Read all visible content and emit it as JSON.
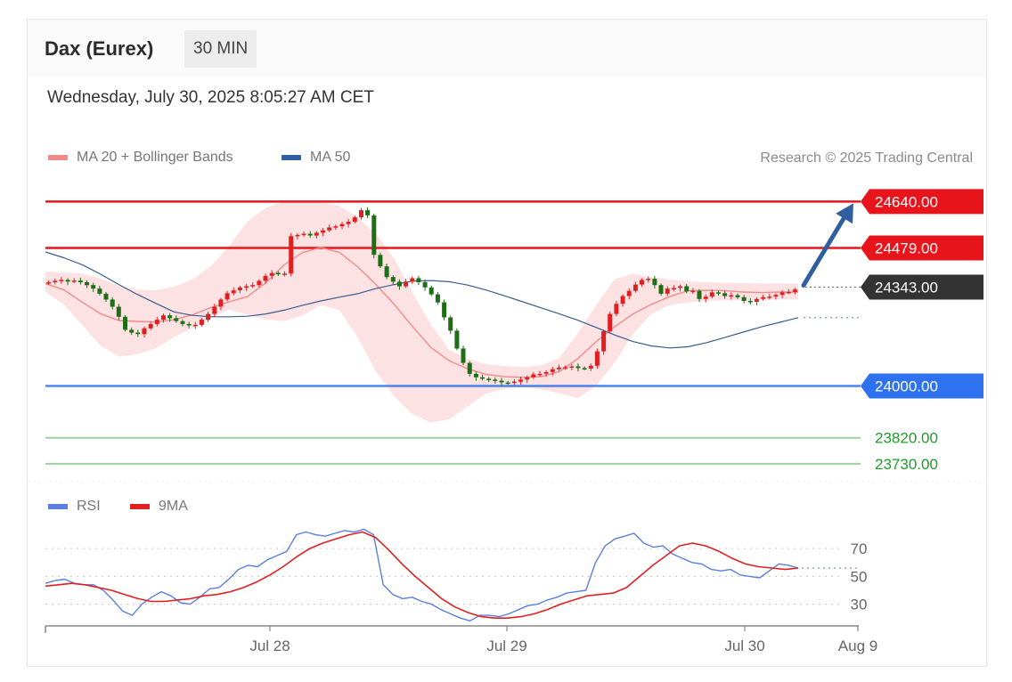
{
  "header": {
    "title": "Dax (Eurex)",
    "timeframe": "30 MIN",
    "timestamp": "Wednesday, July 30, 2025 8:05:27 AM CET",
    "credit": "Research © 2025 Trading Central"
  },
  "colors": {
    "resistance": "#e8141b",
    "pivot": "#2f72f0",
    "support": "#1a9e27",
    "current": "#333333",
    "ma20": "#f08a8a",
    "bollinger_fill": "#fde0e1",
    "ma50": "#3a5d8f",
    "candle_up": "#e02020",
    "candle_down": "#1e6e16",
    "arrow": "#2f5f9e",
    "rsi": "#5b7fe0",
    "rsi_ma": "#e02020"
  },
  "chart_data": [
    {
      "type": "candlestick",
      "legend": [
        {
          "name": "MA 20 + Bollinger Bands",
          "color": "#f08a8a"
        },
        {
          "name": "MA 50",
          "color": "#2f5f9e"
        }
      ],
      "x_ticks": [
        "Jul 28",
        "Jul 29",
        "Jul 30",
        "Aug 9"
      ],
      "ylim": [
        23680,
        24700
      ],
      "levels": [
        {
          "value": 24640,
          "label": "24640.00",
          "kind": "resistance"
        },
        {
          "value": 24479,
          "label": "24479.00",
          "kind": "resistance"
        },
        {
          "value": 24343,
          "label": "24343.00",
          "kind": "current"
        },
        {
          "value": 24000,
          "label": "24000.00",
          "kind": "pivot"
        },
        {
          "value": 23820,
          "label": "23820.00",
          "kind": "support"
        },
        {
          "value": 23730,
          "label": "23730.00",
          "kind": "support"
        }
      ],
      "close": [
        24360,
        24365,
        24368,
        24362,
        24366,
        24360,
        24350,
        24338,
        24320,
        24300,
        24275,
        24240,
        24195,
        24185,
        24180,
        24200,
        24215,
        24230,
        24245,
        24235,
        24225,
        24215,
        24210,
        24212,
        24230,
        24250,
        24275,
        24300,
        24322,
        24332,
        24342,
        24346,
        24350,
        24365,
        24382,
        24392,
        24388,
        24390,
        24520,
        24524,
        24528,
        24522,
        24532,
        24540,
        24550,
        24554,
        24562,
        24570,
        24585,
        24610,
        24592,
        24455,
        24415,
        24378,
        24362,
        24346,
        24362,
        24374,
        24360,
        24342,
        24318,
        24290,
        24238,
        24192,
        24130,
        24080,
        24042,
        24030,
        24025,
        24022,
        24018,
        24012,
        24010,
        24015,
        24022,
        24030,
        24040,
        24042,
        24048,
        24058,
        24064,
        24065,
        24068,
        24062,
        24060,
        24070,
        24120,
        24190,
        24250,
        24285,
        24312,
        24330,
        24352,
        24368,
        24372,
        24350,
        24320,
        24338,
        24340,
        24346,
        24328,
        24330,
        24302,
        24310,
        24325,
        24322,
        24312,
        24315,
        24308,
        24295,
        24292,
        24302,
        24308,
        24310,
        24316,
        24325,
        24326,
        24335
      ],
      "ma50": [
        24465,
        24445,
        24421,
        24388,
        24352,
        24318,
        24287,
        24257,
        24245,
        24240,
        24240,
        24242,
        24250,
        24263,
        24280,
        24295,
        24308,
        24320,
        24338,
        24352,
        24364,
        24366,
        24362,
        24350,
        24333,
        24313,
        24292,
        24271,
        24250,
        24228,
        24203,
        24177,
        24154,
        24139,
        24132,
        24136,
        24150,
        24168,
        24187,
        24205,
        24221,
        24237
      ],
      "ma20": [
        24355,
        24334,
        24291,
        24251,
        24227,
        24224,
        24222,
        24230,
        24247,
        24272,
        24292,
        24310,
        24358,
        24420,
        24463,
        24481,
        24464,
        24414,
        24352,
        24283,
        24206,
        24133,
        24087,
        24060,
        24040,
        24032,
        24030,
        24032,
        24050,
        24095,
        24154,
        24205,
        24250,
        24283,
        24310,
        24331,
        24332,
        24331,
        24326,
        24324,
        24326,
        24326
      ],
      "bb_upper": [
        24397,
        24394,
        24391,
        24373,
        24347,
        24334,
        24332,
        24345,
        24370,
        24416,
        24485,
        24571,
        24618,
        24640,
        24642,
        24640,
        24626,
        24585,
        24528,
        24441,
        24323,
        24213,
        24125,
        24094,
        24075,
        24069,
        24066,
        24071,
        24098,
        24183,
        24282,
        24370,
        24390,
        24378,
        24370,
        24363,
        24360,
        24358,
        24357,
        24356,
        24356,
        24356
      ],
      "bb_lower": [
        24327,
        24283,
        24212,
        24140,
        24101,
        24110,
        24130,
        24170,
        24200,
        24235,
        24265,
        24248,
        24230,
        24225,
        24245,
        24280,
        24264,
        24170,
        24051,
        23963,
        23902,
        23873,
        23884,
        23930,
        23973,
        23990,
        23996,
        23988,
        23975,
        23958,
        24002,
        24080,
        24180,
        24250,
        24280,
        24290,
        24295,
        24297,
        24297,
        24298,
        24300,
        24300
      ],
      "arrow": {
        "from": 24343,
        "to": 24640
      }
    },
    {
      "type": "line",
      "legend": [
        {
          "name": "RSI",
          "color": "#5b7fe0"
        },
        {
          "name": "9MA",
          "color": "#e02020"
        }
      ],
      "ylim": [
        15,
        90
      ],
      "y_ticks": [
        "70",
        "50",
        "30"
      ],
      "rsi": [
        45,
        47,
        48,
        45,
        44,
        44,
        40,
        33,
        25,
        22,
        30,
        35,
        39,
        36,
        31,
        30,
        35,
        41,
        42,
        48,
        55,
        58,
        57,
        62,
        65,
        68,
        80,
        82,
        80,
        79,
        81,
        83,
        82,
        84,
        80,
        44,
        37,
        34,
        35,
        32,
        30,
        26,
        23,
        20,
        18,
        22,
        22,
        21,
        23,
        26,
        29,
        30,
        33,
        35,
        38,
        39,
        40,
        60,
        72,
        77,
        79,
        81,
        74,
        71,
        72,
        66,
        63,
        60,
        59,
        55,
        54,
        55,
        51,
        50,
        49,
        54,
        59,
        58,
        56
      ],
      "rsi_ma": [
        43,
        44,
        45,
        44,
        42,
        40,
        37,
        34,
        32,
        32,
        33,
        34,
        36,
        37,
        39,
        42,
        46,
        51,
        57,
        64,
        70,
        74,
        77,
        80,
        82,
        78,
        69,
        59,
        50,
        42,
        34,
        28,
        24,
        21,
        20,
        20,
        21,
        23,
        26,
        30,
        33,
        36,
        37,
        38,
        42,
        50,
        58,
        65,
        72,
        74,
        72,
        68,
        63,
        59,
        57,
        56,
        55,
        56
      ]
    }
  ]
}
